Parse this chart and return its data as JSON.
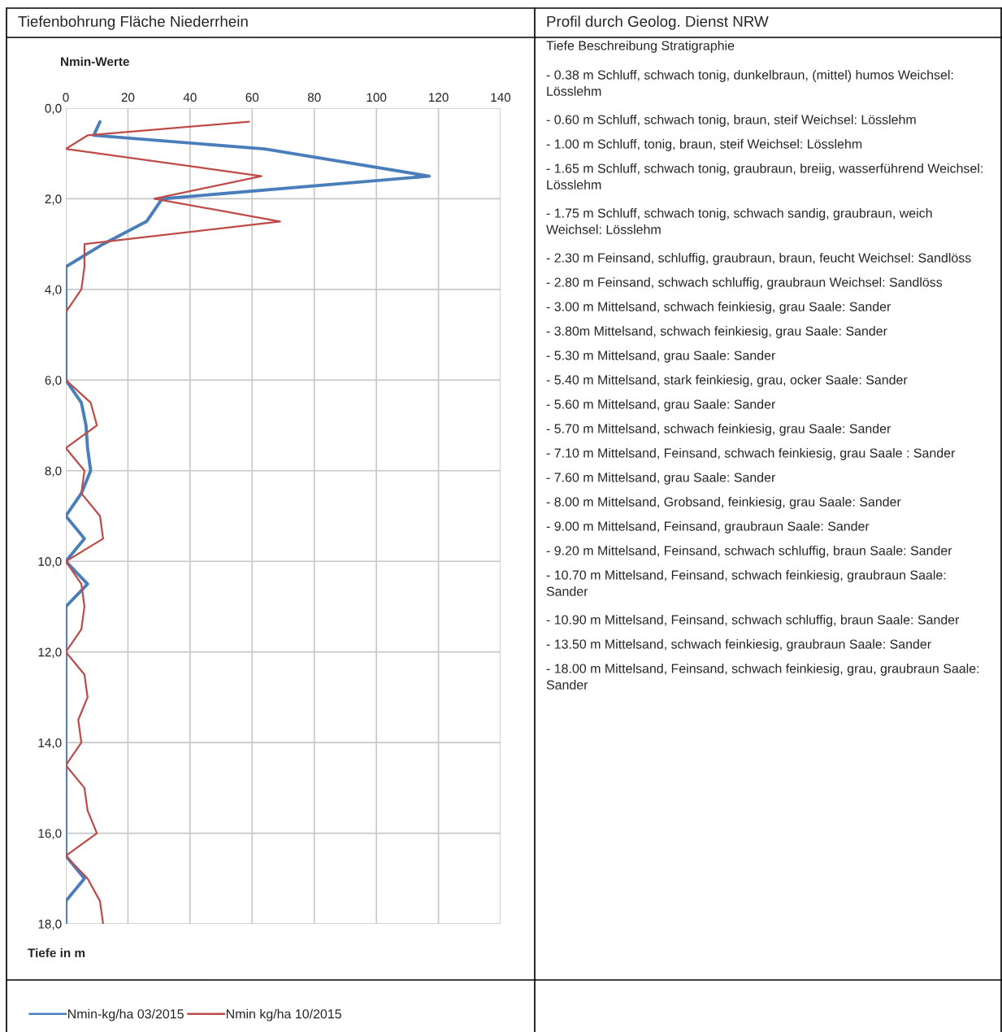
{
  "chart_data": {
    "type": "line",
    "title": "Tiefenbohrung Fläche Niederrhein",
    "subtitle": "Profil durch Geolog. Dienst NRW",
    "xlabel": "Nmin-Werte",
    "ylabel": "Tiefe in m",
    "xlim": [
      0,
      140
    ],
    "xticks": [
      0,
      20,
      40,
      60,
      80,
      100,
      120,
      140
    ],
    "ylim": [
      18,
      0
    ],
    "yticks": [
      {
        "value": 0,
        "label": "0,0"
      },
      {
        "value": 2,
        "label": "2,0"
      },
      {
        "value": 4,
        "label": "4,0"
      },
      {
        "value": 6,
        "label": "6,0"
      },
      {
        "value": 8,
        "label": "8,0"
      },
      {
        "value": 10,
        "label": "10,0"
      },
      {
        "value": 12,
        "label": "12,0"
      },
      {
        "value": 14,
        "label": "14,0"
      },
      {
        "value": 16,
        "label": "16,0"
      },
      {
        "value": 18,
        "label": "18,0"
      }
    ],
    "grid": true,
    "legend": "bottom",
    "marker": "none",
    "line_style": "solid",
    "series": [
      {
        "name": "Nmin-kg/ha 03/2015",
        "color": "#4a7ebb",
        "x": [
          11,
          9,
          64,
          117,
          31,
          26,
          12,
          0,
          0,
          0,
          0,
          0,
          0,
          5,
          6.5,
          7,
          8,
          5,
          0,
          6,
          0,
          7,
          0,
          0,
          0,
          0,
          0,
          0,
          0,
          0,
          0,
          0,
          0,
          0,
          6,
          0,
          0
        ],
        "values": [
          0.3,
          0.6,
          0.9,
          1.5,
          2,
          2.5,
          3,
          3.5,
          4,
          4.5,
          5,
          5.5,
          6,
          6.5,
          7,
          7.5,
          8,
          8.5,
          9,
          9.5,
          10,
          10.5,
          11,
          11.5,
          12,
          12.5,
          13,
          13.5,
          14,
          14.5,
          15,
          15.5,
          16,
          16.5,
          17,
          17.5,
          18
        ]
      },
      {
        "name": "Nmin kg/ha 10/2015",
        "color": "#be4b48",
        "x": [
          59,
          7,
          0,
          63,
          28.5,
          69,
          6,
          6,
          5,
          0,
          0,
          0,
          0,
          8,
          10,
          0,
          6,
          5,
          11,
          12,
          0,
          5,
          6,
          5,
          0,
          6,
          7,
          4,
          5,
          0,
          6,
          7,
          10,
          0,
          7,
          11,
          12
        ],
        "values": [
          0.3,
          0.6,
          0.9,
          1.5,
          2,
          2.5,
          3,
          3.5,
          4,
          4.5,
          5,
          5.5,
          6,
          6.5,
          7,
          7.5,
          8,
          8.5,
          9,
          9.5,
          10,
          10.5,
          11,
          11.5,
          12,
          12.5,
          13,
          13.5,
          14,
          14.5,
          15,
          15.5,
          16,
          16.5,
          17,
          17.5,
          18
        ]
      }
    ],
    "annotations": [
      "Tiefe Beschreibung Stratigraphie",
      "- 0.38 m Schluff, schwach tonig, dunkelbraun, (mittel) humos Weichsel: Lösslehm",
      "- 0.60 m Schluff, schwach tonig, braun, steif Weichsel: Lösslehm",
      "- 1.00 m Schluff, tonig, braun, steif Weichsel: Lösslehm",
      "- 1.65 m Schluff, schwach tonig, graubraun, breiig, wasserführend Weichsel: Lösslehm",
      "- 1.75 m Schluff, schwach tonig, schwach sandig, graubraun, weich Weichsel: Lösslehm",
      "- 2.30 m Feinsand, schluffig, graubraun, braun, feucht Weichsel: Sandlöss",
      "- 2.80 m Feinsand, schwach schluffig, graubraun Weichsel: Sandlöss",
      "- 3.00 m Mittelsand, schwach feinkiesig, grau Saale: Sander",
      "- 3.80m Mittelsand, schwach feinkiesig, grau Saale: Sander",
      "- 5.30 m Mittelsand, grau Saale: Sander",
      "- 5.40 m Mittelsand, stark feinkiesig, grau, ocker Saale: Sander",
      "- 5.60 m Mittelsand, grau Saale: Sander",
      "- 5.70 m Mittelsand, schwach feinkiesig, grau Saale: Sander",
      "- 7.10 m Mittelsand, Feinsand, schwach feinkiesig, grau Saale : Sander",
      "- 7.60 m Mittelsand, grau Saale: Sander",
      "- 8.00 m Mittelsand, Grobsand, feinkiesig, grau Saale: Sander",
      "- 9.00 m Mittelsand, Feinsand, graubraun Saale: Sander",
      "- 9.20 m Mittelsand, Feinsand, schwach schluffig, braun Saale: Sander",
      "- 10.70 m Mittelsand, Feinsand, schwach feinkiesig, graubraun Saale: Sander",
      "- 10.90 m Mittelsand, Feinsand, schwach schluffig, braun Saale: Sander",
      "- 13.50 m Mittelsand, schwach feinkiesig, graubraun Saale: Sander",
      "- 18.00 m Mittelsand, Feinsand, schwach feinkiesig, grau, graubraun Saale: Sander"
    ]
  }
}
